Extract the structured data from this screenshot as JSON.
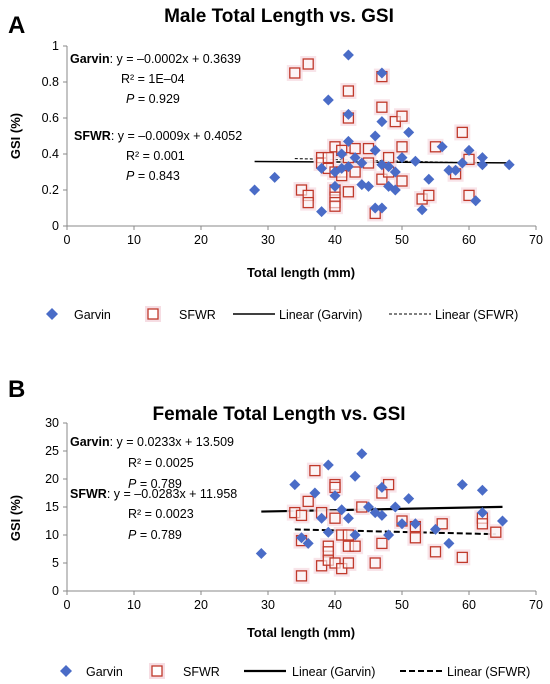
{
  "chart_data": [
    {
      "panel": "A",
      "type": "scatter",
      "title": "Male Total Length vs. GSI",
      "xlabel": "Total length (mm)",
      "ylabel": "GSI (%)",
      "xlim": [
        0,
        70
      ],
      "ylim": [
        0,
        1
      ],
      "xticks": [
        "0",
        "10",
        "20",
        "30",
        "40",
        "50",
        "60",
        "70"
      ],
      "yticks": [
        "0",
        "0.2",
        "0.4",
        "0.6",
        "0.8",
        "1"
      ],
      "grid": false,
      "legend_position": "bottom",
      "legend": {
        "garvin": "Garvin",
        "sfwr": "SFWR",
        "lin_garvin": "Linear (Garvin)",
        "lin_sfwr": "Linear (SFWR)"
      },
      "annotations": {
        "garvin_name": "Garvin",
        "garvin_eq": ": y = –0.0002x + 0.3639",
        "garvin_r2": "R² = 1E–04",
        "garvin_p_sym": "P",
        "garvin_p_val": " = 0.929",
        "sfwr_name": "SFWR",
        "sfwr_eq": ": y = –0.0009x + 0.4052",
        "sfwr_r2": "R² = 0.001",
        "sfwr_p_sym": "P",
        "sfwr_p_val": " = 0.843"
      },
      "trend": {
        "garvin": {
          "slope": -0.0002,
          "intercept": 0.3639,
          "x_range": [
            28,
            66
          ]
        },
        "sfwr": {
          "slope": -0.0009,
          "intercept": 0.4052,
          "x_range": [
            34,
            61
          ]
        }
      },
      "series": [
        {
          "name": "Garvin",
          "points": [
            [
              28,
              0.2
            ],
            [
              31,
              0.27
            ],
            [
              38,
              0.32
            ],
            [
              38,
              0.08
            ],
            [
              39,
              0.7
            ],
            [
              40,
              0.3
            ],
            [
              40,
              0.22
            ],
            [
              41,
              0.32
            ],
            [
              41,
              0.4
            ],
            [
              42,
              0.95
            ],
            [
              42,
              0.62
            ],
            [
              42,
              0.47
            ],
            [
              42,
              0.33
            ],
            [
              43,
              0.38
            ],
            [
              44,
              0.35
            ],
            [
              44,
              0.23
            ],
            [
              45,
              0.22
            ],
            [
              46,
              0.5
            ],
            [
              46,
              0.42
            ],
            [
              46,
              0.1
            ],
            [
              47,
              0.85
            ],
            [
              47,
              0.58
            ],
            [
              47,
              0.34
            ],
            [
              47,
              0.1
            ],
            [
              48,
              0.33
            ],
            [
              48,
              0.22
            ],
            [
              49,
              0.3
            ],
            [
              49,
              0.2
            ],
            [
              50,
              0.38
            ],
            [
              51,
              0.52
            ],
            [
              52,
              0.36
            ],
            [
              53,
              0.09
            ],
            [
              54,
              0.26
            ],
            [
              56,
              0.44
            ],
            [
              57,
              0.31
            ],
            [
              58,
              0.31
            ],
            [
              59,
              0.35
            ],
            [
              60,
              0.42
            ],
            [
              61,
              0.14
            ],
            [
              62,
              0.38
            ],
            [
              62,
              0.34
            ],
            [
              66,
              0.34
            ]
          ]
        },
        {
          "name": "SFWR",
          "points": [
            [
              34,
              0.85
            ],
            [
              35,
              0.2
            ],
            [
              36,
              0.9
            ],
            [
              36,
              0.17
            ],
            [
              36,
              0.13
            ],
            [
              38,
              0.38
            ],
            [
              38,
              0.35
            ],
            [
              39,
              0.38
            ],
            [
              39,
              0.32
            ],
            [
              40,
              0.44
            ],
            [
              40,
              0.3
            ],
            [
              40,
              0.2
            ],
            [
              40,
              0.16
            ],
            [
              40,
              0.13
            ],
            [
              40,
              0.11
            ],
            [
              41,
              0.42
            ],
            [
              41,
              0.3
            ],
            [
              41,
              0.28
            ],
            [
              42,
              0.75
            ],
            [
              42,
              0.6
            ],
            [
              42,
              0.38
            ],
            [
              42,
              0.19
            ],
            [
              43,
              0.43
            ],
            [
              43,
              0.3
            ],
            [
              45,
              0.43
            ],
            [
              45,
              0.35
            ],
            [
              46,
              0.07
            ],
            [
              47,
              0.83
            ],
            [
              47,
              0.66
            ],
            [
              47,
              0.26
            ],
            [
              48,
              0.38
            ],
            [
              48,
              0.3
            ],
            [
              49,
              0.58
            ],
            [
              50,
              0.61
            ],
            [
              50,
              0.44
            ],
            [
              50,
              0.25
            ],
            [
              53,
              0.15
            ],
            [
              54,
              0.17
            ],
            [
              55,
              0.44
            ],
            [
              58,
              0.29
            ],
            [
              59,
              0.52
            ],
            [
              60,
              0.37
            ],
            [
              60,
              0.17
            ]
          ]
        }
      ]
    },
    {
      "panel": "B",
      "type": "scatter",
      "title": "Female Total Length vs. GSI",
      "xlabel": "Total length (mm)",
      "ylabel": "GSI (%)",
      "xlim": [
        0,
        70
      ],
      "ylim": [
        0,
        30
      ],
      "xticks": [
        "0",
        "10",
        "20",
        "30",
        "40",
        "50",
        "60",
        "70"
      ],
      "yticks": [
        "0",
        "5",
        "10",
        "15",
        "20",
        "25",
        "30"
      ],
      "grid": false,
      "legend_position": "bottom",
      "legend": {
        "garvin": "Garvin",
        "sfwr": "SFWR",
        "lin_garvin": "Linear (Garvin)",
        "lin_sfwr": "Linear (SFWR)"
      },
      "annotations": {
        "garvin_name": "Garvin",
        "garvin_eq": ": y = 0.0233x + 13.509",
        "garvin_r2": "R² = 0.0025",
        "garvin_p_sym": "P",
        "garvin_p_val": " = 0.789",
        "sfwr_name": "SFWR",
        "sfwr_eq": ": y = –0.0283x + 11.958",
        "sfwr_r2": "R² = 0.0023",
        "sfwr_p_sym": "P",
        "sfwr_p_val": " = 0.789"
      },
      "trend": {
        "garvin": {
          "slope": 0.0233,
          "intercept": 13.509,
          "x_range": [
            29,
            65
          ]
        },
        "sfwr": {
          "slope": -0.0283,
          "intercept": 11.958,
          "x_range": [
            34,
            64
          ]
        }
      },
      "series": [
        {
          "name": "Garvin",
          "points": [
            [
              29,
              6.7
            ],
            [
              34,
              19
            ],
            [
              35,
              9.5
            ],
            [
              36,
              8.5
            ],
            [
              37,
              17.5
            ],
            [
              38,
              13
            ],
            [
              39,
              22.5
            ],
            [
              39,
              10.5
            ],
            [
              40,
              17
            ],
            [
              41,
              14.5
            ],
            [
              42,
              13
            ],
            [
              43,
              20.5
            ],
            [
              43,
              10
            ],
            [
              44,
              24.5
            ],
            [
              45,
              15
            ],
            [
              46,
              14
            ],
            [
              47,
              18.5
            ],
            [
              47,
              13.5
            ],
            [
              48,
              10
            ],
            [
              49,
              15
            ],
            [
              50,
              12
            ],
            [
              51,
              16.5
            ],
            [
              52,
              12
            ],
            [
              55,
              11
            ],
            [
              57,
              8.5
            ],
            [
              59,
              19
            ],
            [
              62,
              18
            ],
            [
              62,
              14
            ],
            [
              65,
              12.5
            ]
          ]
        },
        {
          "name": "SFWR",
          "points": [
            [
              34,
              14
            ],
            [
              35,
              13.5
            ],
            [
              35,
              9
            ],
            [
              35,
              2.7
            ],
            [
              36,
              16
            ],
            [
              37,
              21.5
            ],
            [
              38,
              14
            ],
            [
              38,
              4.5
            ],
            [
              39,
              8
            ],
            [
              39,
              7
            ],
            [
              39,
              5.5
            ],
            [
              40,
              19
            ],
            [
              40,
              18.5
            ],
            [
              40,
              13
            ],
            [
              40,
              5
            ],
            [
              41,
              10
            ],
            [
              41,
              4
            ],
            [
              42,
              10
            ],
            [
              42,
              8
            ],
            [
              42,
              5
            ],
            [
              43,
              8
            ],
            [
              44,
              15
            ],
            [
              46,
              5
            ],
            [
              47,
              17.5
            ],
            [
              47,
              8.5
            ],
            [
              48,
              19
            ],
            [
              50,
              12.5
            ],
            [
              52,
              11.5
            ],
            [
              52,
              9.5
            ],
            [
              55,
              7
            ],
            [
              56,
              12
            ],
            [
              59,
              6
            ],
            [
              62,
              13
            ],
            [
              62,
              12
            ],
            [
              64,
              10.5
            ]
          ]
        }
      ]
    }
  ]
}
